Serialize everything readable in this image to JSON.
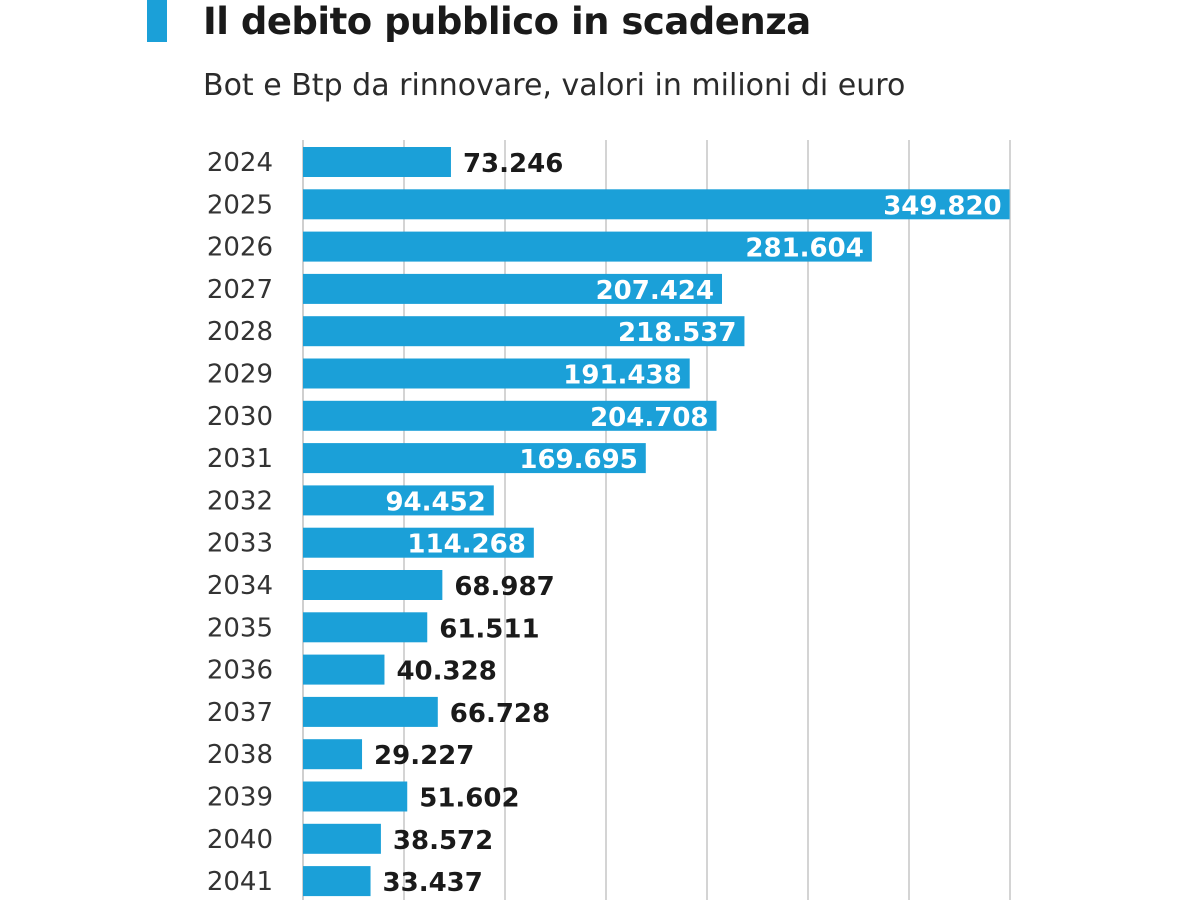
{
  "chart_data": {
    "type": "bar",
    "orientation": "horizontal",
    "title": "Il debito pubblico in scadenza",
    "subtitle": "Bot e Btp da rinnovare, valori in milioni di euro",
    "categories": [
      "2024",
      "2025",
      "2026",
      "2027",
      "2028",
      "2029",
      "2030",
      "2031",
      "2032",
      "2033",
      "2034",
      "2035",
      "2036",
      "2037",
      "2038",
      "2039",
      "2040",
      "2041"
    ],
    "values": [
      73246,
      349820,
      281604,
      207424,
      218537,
      191438,
      204708,
      169695,
      94452,
      114268,
      68987,
      61511,
      40328,
      66728,
      29227,
      51602,
      38572,
      33437
    ],
    "value_labels": [
      "73.246",
      "349.820",
      "281.604",
      "207.424",
      "218.537",
      "191.438",
      "204.708",
      "169.695",
      "94.452",
      "114.268",
      "68.987",
      "61.511",
      "40.328",
      "66.728",
      "29.227",
      "51.602",
      "38.572",
      "33.437"
    ],
    "xlim": [
      0,
      350000
    ],
    "gridlines_x": [
      50000,
      100000,
      150000,
      200000,
      250000,
      300000,
      350000
    ],
    "grid": true,
    "bar_color": "#1ba0d8",
    "label_color_inside": "#ffffff",
    "label_color_outside": "#1a1a1a",
    "title_accent_color": "#1ba0d8"
  }
}
